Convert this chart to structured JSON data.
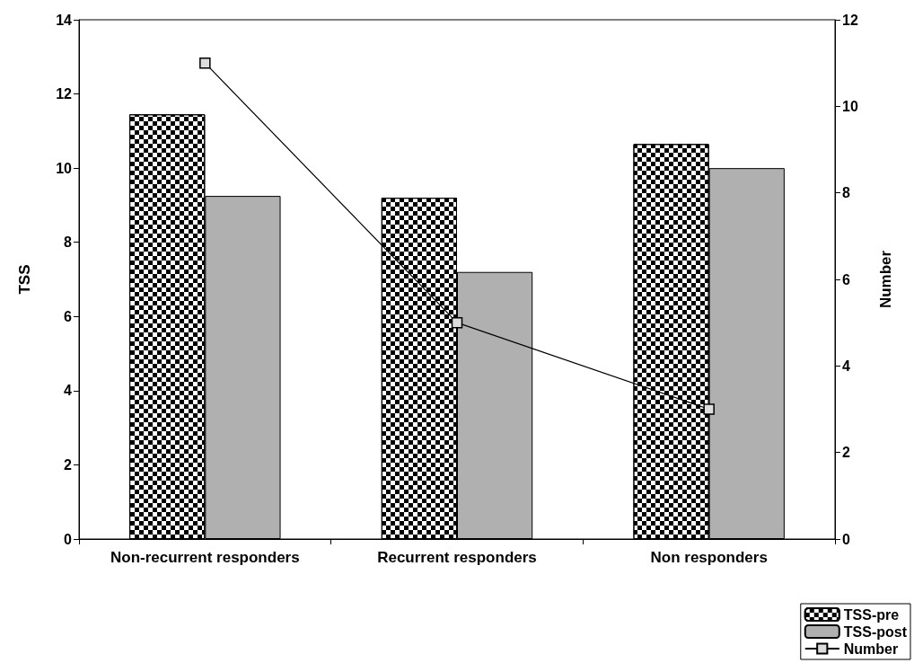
{
  "chart_data": {
    "type": "bar",
    "ylabel": "TSS",
    "y2label": "Number",
    "categories": [
      "Non-recurrent responders",
      "Recurrent responders",
      "Non responders"
    ],
    "series": [
      {
        "name": "TSS-pre",
        "color": "#000000",
        "values": [
          11.45,
          9.2,
          10.65
        ]
      },
      {
        "name": "TSS-post",
        "color": "#b0b0b0",
        "values": [
          9.25,
          7.2,
          10.0
        ]
      },
      {
        "name": "Number",
        "type": "line",
        "axis": "y2",
        "color": "#000000",
        "values": [
          11,
          5,
          3
        ]
      }
    ],
    "ylim": [
      0,
      14
    ],
    "yticks": [
      0,
      2,
      4,
      6,
      8,
      10,
      12,
      14
    ],
    "y2lim": [
      0,
      12
    ],
    "y2ticks": [
      0,
      2,
      4,
      6,
      8,
      10,
      12
    ],
    "grid": false,
    "legend": "bottom right",
    "marker": "square",
    "line_style": "solid"
  }
}
